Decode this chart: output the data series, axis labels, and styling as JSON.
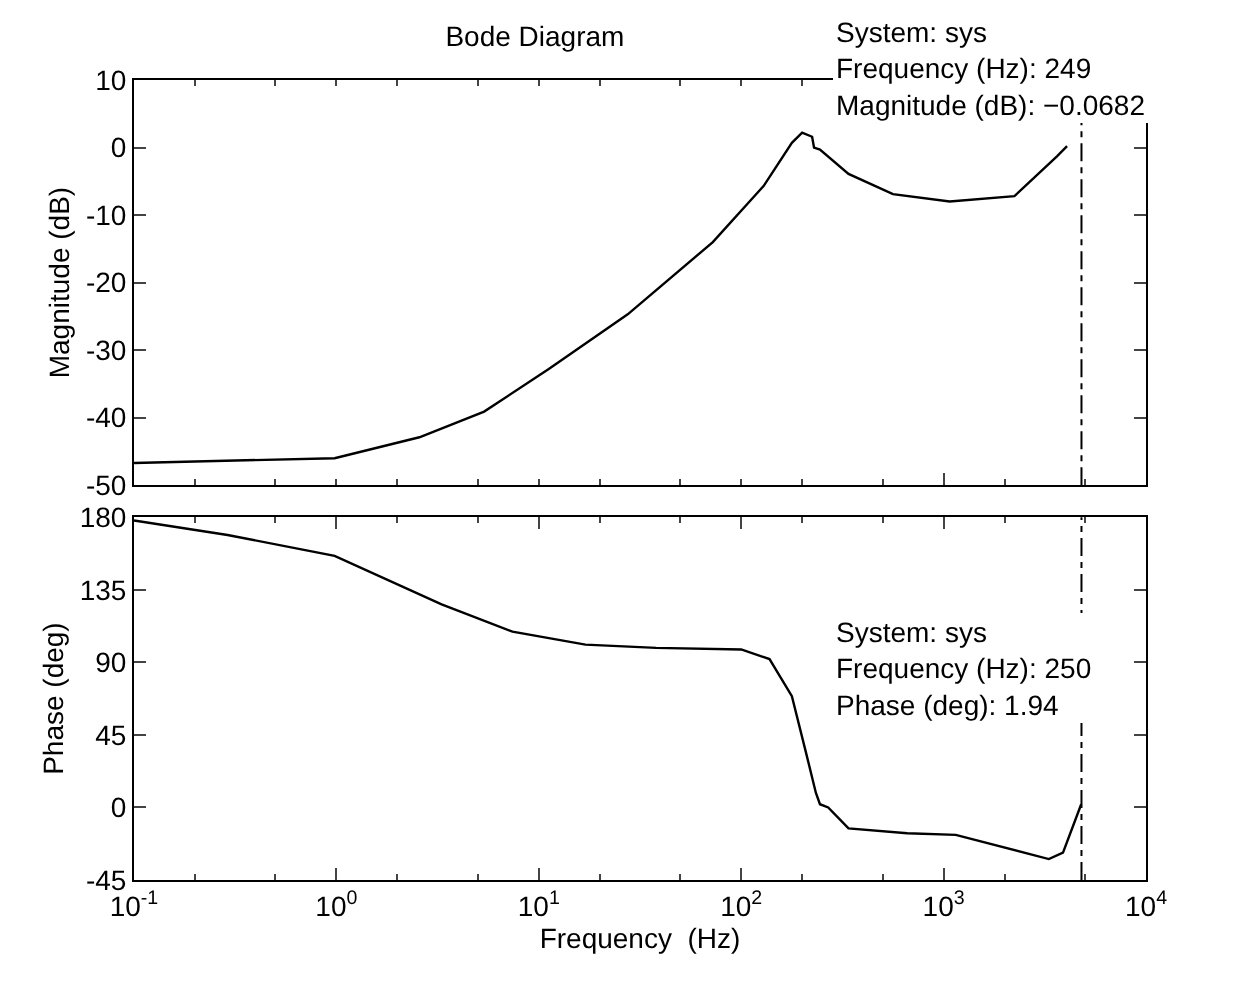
{
  "chart_data": [
    {
      "type": "line",
      "title": "Bode Diagram",
      "ylabel": "Magnitude (dB)",
      "series": [
        {
          "color": "#000000",
          "x": [
            0.1,
            0.98,
            2.57,
            5.37,
            11.2,
            27.5,
            72.4,
            129,
            178,
            200,
            224,
            229,
            245,
            339,
            562,
            1072,
            2239,
            3631,
            4074
          ],
          "values": [
            -46.7,
            -46.0,
            -42.9,
            -39.1,
            -32.8,
            -24.7,
            -14.0,
            -5.7,
            0.7,
            2.2,
            1.6,
            0,
            -0.3,
            -3.9,
            -6.9,
            -8.0,
            -7.2,
            -1.3,
            0.2
          ]
        }
      ],
      "xlim": [
        0.1,
        10000
      ],
      "log": "x",
      "xticks": [
        {
          "value": 0.1,
          "label": null
        },
        {
          "value": 1,
          "label": null
        },
        {
          "value": 10,
          "label": null
        },
        {
          "value": 100,
          "label": null
        },
        {
          "value": 1000,
          "label": null
        },
        {
          "value": 10000,
          "label": null
        }
      ],
      "ylim": [
        -50,
        10
      ],
      "yticks": [
        -50,
        -40,
        -30,
        -20,
        -10,
        0,
        10
      ],
      "tick_labels": "y",
      "marker": "none",
      "line_style": "solid",
      "ref_lines": [
        {
          "axis": "x",
          "value": 4800,
          "color": "#000000",
          "line_style": "dashed"
        }
      ],
      "annotations": [
        "System: sys\nFrequency (Hz): 249\nMagnitude (dB): −0.0682"
      ]
    },
    {
      "type": "line",
      "xlabel": "Frequency  (Hz)",
      "ylabel": "Phase (deg)",
      "series": [
        {
          "color": "#000000",
          "x": [
            0.1,
            0.29,
            0.98,
            3.31,
            7.41,
            17.0,
            38.0,
            100,
            138,
            178,
            209,
            234,
            245,
            269,
            339,
            661,
            1148,
            3311,
            3890,
            4786
          ],
          "values": [
            178,
            169,
            156,
            126,
            109,
            101,
            99,
            98,
            92,
            69,
            34,
            9,
            2,
            0,
            -13,
            -16,
            -17,
            -32,
            -28,
            2
          ]
        }
      ],
      "xlim": [
        0.1,
        10000
      ],
      "log": "x",
      "xticks": [
        {
          "value": 0.1,
          "label": "10$^{-1}$"
        },
        {
          "value": 1,
          "label": "10$^{0}$"
        },
        {
          "value": 10,
          "label": "10$^{1}$"
        },
        {
          "value": 100,
          "label": "10$^{2}$"
        },
        {
          "value": 1000,
          "label": "10$^{3}$"
        },
        {
          "value": 10000,
          "label": "10$^{4}$"
        }
      ],
      "ylim": [
        -45,
        180
      ],
      "yticks": [
        -45,
        0,
        45,
        90,
        135,
        180
      ],
      "marker": "none",
      "line_style": "solid",
      "ref_lines": [
        {
          "axis": "x",
          "value": 4800,
          "color": "#000000",
          "line_style": "dashed"
        }
      ],
      "annotations": [
        "System: sys\nFrequency (Hz): 250\nPhase (deg): 1.94"
      ]
    }
  ]
}
